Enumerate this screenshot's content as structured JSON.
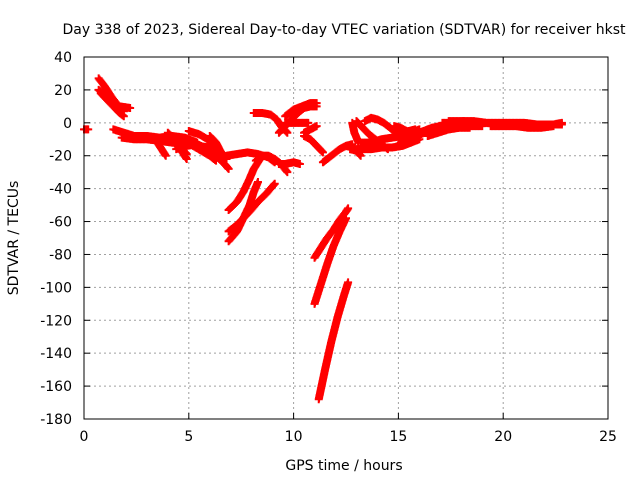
{
  "chart_data": {
    "type": "scatter",
    "title": "Day 338 of 2023, Sidereal Day-to-day VTEC variation (SDTVAR) for receiver hkst",
    "xlabel": "GPS time / hours",
    "ylabel": "SDTVAR / TECUs",
    "xlim": [
      0,
      25
    ],
    "ylim": [
      -180,
      40
    ],
    "xticks": [
      0,
      5,
      10,
      15,
      20,
      25
    ],
    "yticks": [
      40,
      20,
      0,
      -20,
      -40,
      -60,
      -80,
      -100,
      -120,
      -140,
      -160,
      -180
    ],
    "grid": true,
    "marker": "+",
    "color": "#ff0000",
    "series": [
      {
        "name": "s1",
        "points": [
          [
            0.0,
            -4
          ],
          [
            0.2,
            -4
          ]
        ]
      },
      {
        "name": "s2",
        "points": [
          [
            0.7,
            27
          ],
          [
            1.0,
            22
          ],
          [
            1.3,
            16
          ],
          [
            1.6,
            11
          ],
          [
            1.9,
            7
          ]
        ]
      },
      {
        "name": "s3",
        "points": [
          [
            0.7,
            20
          ],
          [
            1.0,
            17
          ],
          [
            1.3,
            13
          ],
          [
            1.7,
            10
          ],
          [
            2.2,
            9
          ]
        ]
      },
      {
        "name": "s4",
        "points": [
          [
            0.8,
            18
          ],
          [
            1.1,
            14
          ],
          [
            1.4,
            10
          ],
          [
            1.7,
            6
          ],
          [
            1.9,
            4
          ]
        ]
      },
      {
        "name": "s5",
        "points": [
          [
            1.4,
            -4
          ],
          [
            1.9,
            -6
          ],
          [
            2.4,
            -8
          ],
          [
            3.0,
            -8
          ],
          [
            3.6,
            -9
          ],
          [
            4.2,
            -8
          ],
          [
            4.8,
            -9
          ],
          [
            5.0,
            -10
          ],
          [
            5.4,
            -12
          ]
        ]
      },
      {
        "name": "s6",
        "points": [
          [
            1.8,
            -9
          ],
          [
            2.4,
            -10
          ],
          [
            3.0,
            -10
          ],
          [
            3.6,
            -11
          ],
          [
            4.2,
            -12
          ],
          [
            4.8,
            -13
          ],
          [
            5.4,
            -14
          ],
          [
            6.0,
            -15
          ]
        ]
      },
      {
        "name": "s7",
        "points": [
          [
            3.5,
            -12
          ],
          [
            3.7,
            -16
          ],
          [
            3.9,
            -20
          ]
        ]
      },
      {
        "name": "s8",
        "points": [
          [
            4.0,
            -6
          ],
          [
            4.3,
            -10
          ],
          [
            4.6,
            -15
          ],
          [
            4.9,
            -19
          ]
        ]
      },
      {
        "name": "s9",
        "points": [
          [
            4.1,
            -8
          ],
          [
            4.4,
            -13
          ],
          [
            4.7,
            -18
          ],
          [
            4.9,
            -22
          ]
        ]
      },
      {
        "name": "s10",
        "points": [
          [
            4.4,
            -16
          ],
          [
            4.9,
            -14
          ],
          [
            5.4,
            -13
          ],
          [
            5.9,
            -16
          ],
          [
            6.3,
            -20
          ],
          [
            6.7,
            -25
          ],
          [
            6.9,
            -28
          ]
        ]
      },
      {
        "name": "s11",
        "points": [
          [
            5.0,
            -5
          ],
          [
            5.5,
            -7
          ],
          [
            5.9,
            -10
          ],
          [
            6.2,
            -14
          ],
          [
            6.5,
            -18
          ],
          [
            6.8,
            -22
          ]
        ]
      },
      {
        "name": "s12",
        "points": [
          [
            5.2,
            -14
          ],
          [
            5.6,
            -17
          ],
          [
            6.0,
            -20
          ],
          [
            6.3,
            -23
          ]
        ]
      },
      {
        "name": "s13",
        "points": [
          [
            6.0,
            -8
          ],
          [
            6.3,
            -12
          ],
          [
            6.5,
            -17
          ],
          [
            6.7,
            -21
          ]
        ]
      },
      {
        "name": "s14",
        "points": [
          [
            6.8,
            -20
          ],
          [
            7.3,
            -19
          ],
          [
            7.8,
            -18
          ],
          [
            8.3,
            -19
          ],
          [
            8.8,
            -21
          ],
          [
            9.1,
            -24
          ]
        ]
      },
      {
        "name": "s15",
        "points": [
          [
            6.9,
            -53
          ],
          [
            7.3,
            -48
          ],
          [
            7.6,
            -42
          ],
          [
            7.9,
            -34
          ],
          [
            8.1,
            -28
          ],
          [
            8.3,
            -24
          ],
          [
            8.5,
            -20
          ]
        ]
      },
      {
        "name": "s16",
        "points": [
          [
            6.9,
            -66
          ],
          [
            7.3,
            -62
          ],
          [
            7.6,
            -58
          ],
          [
            7.9,
            -54
          ],
          [
            8.3,
            -48
          ],
          [
            8.7,
            -43
          ],
          [
            9.1,
            -37
          ]
        ]
      },
      {
        "name": "s17",
        "points": [
          [
            6.9,
            -72
          ],
          [
            7.3,
            -66
          ],
          [
            7.6,
            -58
          ],
          [
            7.9,
            -50
          ],
          [
            8.1,
            -42
          ],
          [
            8.3,
            -36
          ]
        ]
      },
      {
        "name": "s18",
        "points": [
          [
            8.2,
            -23
          ],
          [
            8.5,
            -20
          ],
          [
            8.8,
            -20
          ],
          [
            9.1,
            -22
          ],
          [
            9.4,
            -25
          ],
          [
            9.7,
            -30
          ]
        ]
      },
      {
        "name": "s19",
        "points": [
          [
            9.3,
            -25
          ],
          [
            9.6,
            -25
          ],
          [
            10.0,
            -24
          ],
          [
            10.3,
            -25
          ]
        ]
      },
      {
        "name": "s20",
        "points": [
          [
            8.1,
            6
          ],
          [
            8.5,
            6
          ],
          [
            8.9,
            5
          ],
          [
            9.2,
            2
          ],
          [
            9.4,
            -2
          ],
          [
            9.7,
            -6
          ]
        ]
      },
      {
        "name": "s21",
        "points": [
          [
            9.3,
            -6
          ],
          [
            9.6,
            -2
          ],
          [
            9.9,
            2
          ],
          [
            10.2,
            6
          ],
          [
            10.5,
            9
          ],
          [
            10.8,
            10
          ],
          [
            11.1,
            10
          ]
        ]
      },
      {
        "name": "s22",
        "points": [
          [
            9.6,
            0
          ],
          [
            10.0,
            0
          ],
          [
            10.4,
            0
          ],
          [
            10.7,
            0
          ]
        ]
      },
      {
        "name": "s23",
        "points": [
          [
            9.6,
            4
          ],
          [
            10.0,
            8
          ],
          [
            10.4,
            10
          ],
          [
            10.8,
            12
          ],
          [
            11.1,
            12
          ]
        ]
      },
      {
        "name": "s24",
        "points": [
          [
            10.5,
            -6
          ],
          [
            10.8,
            -4
          ],
          [
            11.1,
            -2
          ]
        ]
      },
      {
        "name": "s25",
        "points": [
          [
            10.5,
            -8
          ],
          [
            10.8,
            -10
          ],
          [
            11.1,
            -14
          ],
          [
            11.4,
            -18
          ]
        ]
      },
      {
        "name": "s26",
        "points": [
          [
            11.0,
            -82
          ],
          [
            11.3,
            -76
          ],
          [
            11.6,
            -70
          ],
          [
            11.9,
            -65
          ],
          [
            12.2,
            -59
          ],
          [
            12.5,
            -54
          ],
          [
            12.6,
            -52
          ]
        ]
      },
      {
        "name": "s27",
        "points": [
          [
            11.0,
            -110
          ],
          [
            11.3,
            -98
          ],
          [
            11.6,
            -86
          ],
          [
            11.9,
            -75
          ],
          [
            12.2,
            -66
          ],
          [
            12.5,
            -58
          ]
        ]
      },
      {
        "name": "s28",
        "points": [
          [
            11.2,
            -168
          ],
          [
            11.5,
            -150
          ],
          [
            11.8,
            -133
          ],
          [
            12.1,
            -118
          ],
          [
            12.4,
            -105
          ],
          [
            12.6,
            -97
          ]
        ]
      },
      {
        "name": "s29",
        "points": [
          [
            11.4,
            -24
          ],
          [
            11.8,
            -20
          ],
          [
            12.2,
            -16
          ],
          [
            12.5,
            -14
          ],
          [
            12.8,
            -13
          ]
        ]
      },
      {
        "name": "s30",
        "points": [
          [
            12.7,
            -16
          ],
          [
            13.0,
            -17
          ],
          [
            13.2,
            -20
          ]
        ]
      },
      {
        "name": "s31",
        "points": [
          [
            12.7,
            -16
          ],
          [
            13.2,
            -16
          ],
          [
            13.7,
            -16
          ],
          [
            14.2,
            -15
          ],
          [
            14.7,
            -15
          ],
          [
            15.2,
            -14
          ],
          [
            15.6,
            -12
          ],
          [
            16.0,
            -10
          ]
        ]
      },
      {
        "name": "s32",
        "points": [
          [
            13.4,
            1
          ],
          [
            13.7,
            3
          ],
          [
            14.0,
            2
          ],
          [
            14.3,
            0
          ],
          [
            14.6,
            -3
          ],
          [
            14.9,
            -6
          ],
          [
            15.2,
            -9
          ],
          [
            15.4,
            -11
          ]
        ]
      },
      {
        "name": "s33",
        "points": [
          [
            13.0,
            1
          ],
          [
            13.3,
            -3
          ],
          [
            13.6,
            -7
          ],
          [
            13.9,
            -10
          ],
          [
            14.2,
            -13
          ],
          [
            14.5,
            -16
          ]
        ]
      },
      {
        "name": "s34",
        "points": [
          [
            12.8,
            0
          ],
          [
            12.9,
            -6
          ],
          [
            13.1,
            -12
          ]
        ]
      },
      {
        "name": "s35",
        "points": [
          [
            13.2,
            -12
          ],
          [
            13.7,
            -12
          ],
          [
            14.2,
            -10
          ],
          [
            14.7,
            -9
          ],
          [
            15.2,
            -8
          ],
          [
            15.6,
            -6
          ],
          [
            16.0,
            -4
          ]
        ]
      },
      {
        "name": "s36",
        "points": [
          [
            14.8,
            -2
          ],
          [
            15.1,
            -3
          ],
          [
            15.4,
            -5
          ]
        ]
      },
      {
        "name": "s37",
        "points": [
          [
            14.9,
            -8
          ],
          [
            15.2,
            -7
          ],
          [
            15.5,
            -5
          ],
          [
            15.8,
            -4
          ]
        ]
      },
      {
        "name": "s38",
        "points": [
          [
            15.0,
            -13
          ],
          [
            15.4,
            -10
          ],
          [
            15.8,
            -7
          ],
          [
            16.2,
            -5
          ],
          [
            16.6,
            -3
          ],
          [
            17.0,
            -2
          ]
        ]
      },
      {
        "name": "s39",
        "points": [
          [
            15.4,
            -12
          ],
          [
            15.9,
            -8
          ],
          [
            16.4,
            -5
          ],
          [
            16.9,
            -3
          ],
          [
            17.4,
            -1
          ]
        ]
      },
      {
        "name": "s40",
        "points": [
          [
            16.0,
            -6
          ],
          [
            16.5,
            -4
          ],
          [
            17.0,
            -3
          ],
          [
            17.5,
            -2
          ],
          [
            18.0,
            -2
          ],
          [
            18.5,
            -2
          ],
          [
            19.0,
            -2
          ]
        ]
      },
      {
        "name": "s41",
        "points": [
          [
            16.4,
            -8
          ],
          [
            16.9,
            -6
          ],
          [
            17.4,
            -4
          ],
          [
            17.9,
            -3
          ],
          [
            18.4,
            -3
          ]
        ]
      },
      {
        "name": "s42",
        "points": [
          [
            17.1,
            0
          ],
          [
            17.6,
            0
          ],
          [
            18.1,
            1
          ],
          [
            18.6,
            0
          ],
          [
            19.1,
            0
          ]
        ]
      },
      {
        "name": "s43",
        "points": [
          [
            17.4,
            1
          ],
          [
            18.0,
            1
          ],
          [
            18.6,
            1
          ],
          [
            19.2,
            0
          ],
          [
            19.8,
            0
          ],
          [
            20.4,
            0
          ],
          [
            21.0,
            0
          ],
          [
            21.6,
            -1
          ],
          [
            22.2,
            -1
          ],
          [
            22.8,
            -1
          ]
        ]
      },
      {
        "name": "s44",
        "points": [
          [
            19.4,
            -2
          ],
          [
            20.0,
            -2
          ],
          [
            20.6,
            -2
          ],
          [
            21.2,
            -3
          ],
          [
            21.8,
            -3
          ],
          [
            22.4,
            -2
          ]
        ]
      },
      {
        "name": "s45",
        "points": [
          [
            20.6,
            -1
          ],
          [
            21.2,
            -1
          ],
          [
            21.8,
            -2
          ],
          [
            22.4,
            -1
          ],
          [
            22.8,
            0
          ]
        ]
      }
    ]
  }
}
